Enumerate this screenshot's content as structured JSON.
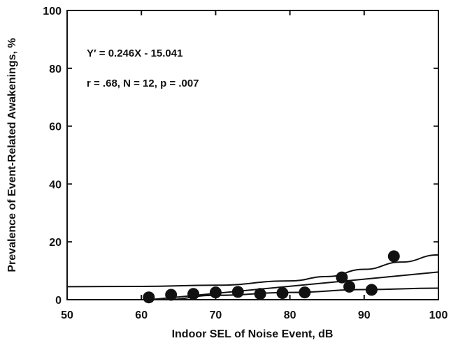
{
  "chart_data": {
    "type": "scatter",
    "title": "",
    "xlabel": "Indoor SEL of Noise Event, dB",
    "ylabel": "Prevalence of Event-Related Awakenings, %",
    "xlim": [
      50,
      100
    ],
    "ylim": [
      0,
      100
    ],
    "xticks": [
      50,
      60,
      70,
      80,
      90,
      100
    ],
    "yticks": [
      0,
      20,
      40,
      60,
      80,
      100
    ],
    "grid": false,
    "legend": "none",
    "annotations": {
      "equation": "Y′ = 0.246X  -  15.041",
      "stats": "r = .68,   N = 12,   p = .007"
    },
    "points": [
      {
        "x": 61,
        "y": 0.8
      },
      {
        "x": 64,
        "y": 1.7
      },
      {
        "x": 67,
        "y": 2.0
      },
      {
        "x": 70,
        "y": 2.5
      },
      {
        "x": 73,
        "y": 2.7
      },
      {
        "x": 76,
        "y": 2.0
      },
      {
        "x": 79,
        "y": 2.3
      },
      {
        "x": 82,
        "y": 2.5
      },
      {
        "x": 87,
        "y": 7.7
      },
      {
        "x": 88,
        "y": 4.5
      },
      {
        "x": 91,
        "y": 3.4
      },
      {
        "x": 94,
        "y": 15.0
      }
    ],
    "regression": {
      "slope": 0.246,
      "intercept": -15.041
    },
    "confidence_band": {
      "upper": [
        {
          "x": 50,
          "y": 4.5
        },
        {
          "x": 60,
          "y": 4.6
        },
        {
          "x": 70,
          "y": 5.0
        },
        {
          "x": 80,
          "y": 6.5
        },
        {
          "x": 85,
          "y": 8.0
        },
        {
          "x": 90,
          "y": 10.5
        },
        {
          "x": 95,
          "y": 13.0
        },
        {
          "x": 100,
          "y": 15.5
        }
      ],
      "lower": [
        {
          "x": 63,
          "y": 0.0
        },
        {
          "x": 70,
          "y": 1.5
        },
        {
          "x": 80,
          "y": 2.5
        },
        {
          "x": 90,
          "y": 3.5
        },
        {
          "x": 100,
          "y": 4.0
        }
      ]
    },
    "colors": {
      "ink": "#111111",
      "background": "#ffffff"
    }
  }
}
